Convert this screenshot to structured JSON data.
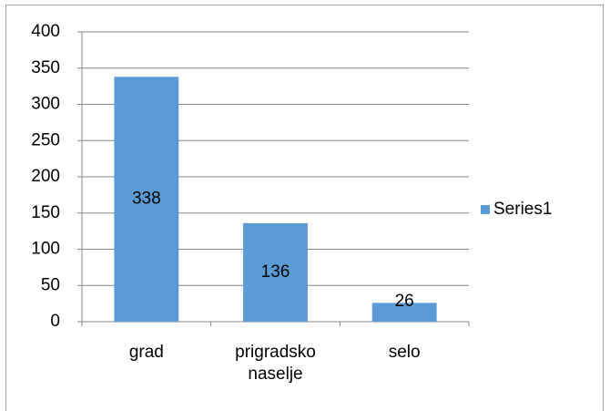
{
  "chart_data": {
    "type": "bar",
    "categories": [
      "grad",
      "prigradsko naselje",
      "selo"
    ],
    "series": [
      {
        "name": "Series1",
        "color": "#5b9bd5",
        "values": [
          338,
          136,
          26
        ]
      }
    ],
    "ylim": [
      0,
      400
    ],
    "yticks": [
      0,
      50,
      100,
      150,
      200,
      250,
      300,
      350,
      400
    ],
    "grid": true,
    "legend": "right",
    "data_labels": true
  }
}
